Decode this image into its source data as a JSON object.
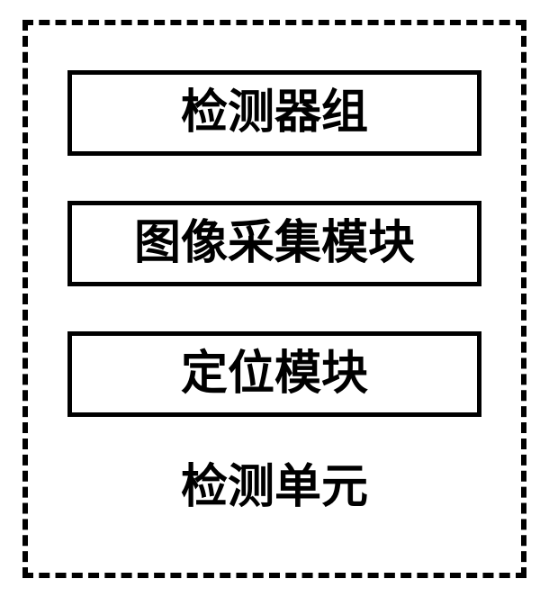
{
  "diagram": {
    "type": "block-diagram",
    "container": {
      "border_style": "dashed",
      "border_width": 6,
      "border_color": "#000000",
      "background_color": "#ffffff"
    },
    "boxes": [
      {
        "label": "检测器组",
        "border_color": "#000000",
        "border_width": 5
      },
      {
        "label": "图像采集模块",
        "border_color": "#000000",
        "border_width": 5
      },
      {
        "label": "定位模块",
        "border_color": "#000000",
        "border_width": 5
      }
    ],
    "caption": "检测单元",
    "text_color": "#000000",
    "font_size": 52,
    "font_weight": "bold"
  }
}
